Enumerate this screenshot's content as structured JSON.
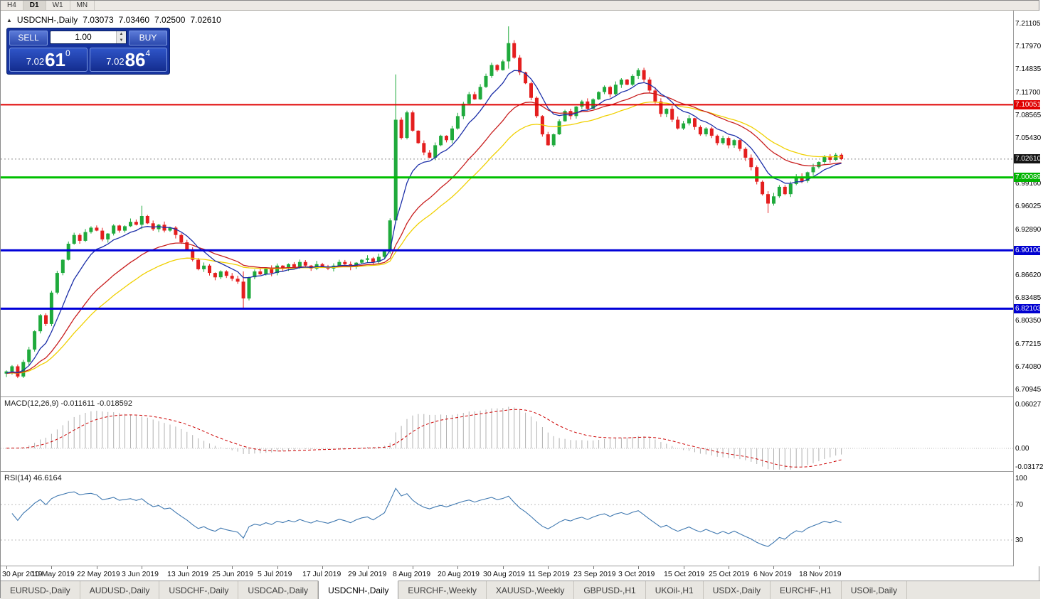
{
  "top_strip": {
    "timeframes": [
      {
        "label": "H4",
        "active": false
      },
      {
        "label": "D1",
        "active": true
      },
      {
        "label": "W1",
        "active": false
      },
      {
        "label": "MN",
        "active": false
      }
    ]
  },
  "chart_header": {
    "collapse_icon": "▲",
    "symbol": "USDCNH-,Daily",
    "open": "7.03073",
    "high": "7.03460",
    "low": "7.02500",
    "close": "7.02610"
  },
  "trade_panel": {
    "sell_label": "SELL",
    "buy_label": "BUY",
    "volume": "1.00",
    "spin_up_icon": "▲",
    "spin_down_icon": "▼",
    "sell_price": {
      "base": "7.02",
      "big": "61",
      "sup": "0"
    },
    "buy_price": {
      "base": "7.02",
      "big": "86",
      "sup": "4"
    }
  },
  "colors": {
    "candle_up": "#1faa3c",
    "candle_down": "#e41e1e",
    "ma_fast": "#1c2fa8",
    "ma_medium": "#c81e1e",
    "ma_slow": "#f0d000",
    "macd_hist": "#b0b0b0",
    "macd_signal": "#cc0000",
    "rsi_line": "#3f78b0",
    "current_price_line": "#8a8a8a"
  },
  "current_price": 7.0261,
  "levels": [
    {
      "price": 7.10051,
      "color": "#e00000",
      "thickness": 2
    },
    {
      "price": 7.00089,
      "color": "#00c000",
      "thickness": 3
    },
    {
      "price": 6.901,
      "color": "#0000d8",
      "thickness": 3
    },
    {
      "price": 6.82103,
      "color": "#0000d8",
      "thickness": 3
    }
  ],
  "price_axis": {
    "labels": [
      "7.21105",
      "7.17970",
      "7.14835",
      "7.11700",
      "7.08565",
      "7.05430",
      "6.99160",
      "6.96025",
      "6.92890",
      "6.86620",
      "6.83485",
      "6.80350",
      "6.77215",
      "6.74080",
      "6.70945"
    ],
    "badges": [
      {
        "text": "7.10051",
        "price": 7.10051,
        "color": "#e00000"
      },
      {
        "text": "7.02610",
        "price": 7.0261,
        "color": "#141414"
      },
      {
        "text": "7.00089",
        "price": 7.00089,
        "color": "#00b400"
      },
      {
        "text": "6.90100",
        "price": 6.901,
        "color": "#0000d0"
      },
      {
        "text": "6.82103",
        "price": 6.82103,
        "color": "#0000d0"
      }
    ]
  },
  "macd_panel": {
    "label": "MACD(12,26,9) -0.011611 -0.018592",
    "axis": [
      {
        "text": "0.06027",
        "value": 0.06027
      },
      {
        "text": "0.00",
        "value": 0
      },
      {
        "text": "-0.03172",
        "value": -0.03172
      }
    ]
  },
  "rsi_panel": {
    "label": "RSI(14) 46.6164",
    "axis": [
      {
        "text": "100",
        "value": 100
      },
      {
        "text": "70",
        "value": 70
      },
      {
        "text": "30",
        "value": 30
      }
    ],
    "level_lines": [
      70,
      30
    ]
  },
  "x_axis": {
    "dates": [
      "30 Apr 2019",
      "10 May 2019",
      "22 May 2019",
      "3 Jun 2019",
      "13 Jun 2019",
      "25 Jun 2019",
      "5 Jul 2019",
      "17 Jul 2019",
      "29 Jul 2019",
      "8 Aug 2019",
      "20 Aug 2019",
      "30 Aug 2019",
      "11 Sep 2019",
      "23 Sep 2019",
      "3 Oct 2019",
      "15 Oct 2019",
      "25 Oct 2019",
      "6 Nov 2019",
      "18 Nov 2019"
    ],
    "candles_per_label": 8
  },
  "tabs": [
    {
      "label": "EURUSD-,Daily",
      "active": false
    },
    {
      "label": "AUDUSD-,Daily",
      "active": false
    },
    {
      "label": "USDCHF-,Daily",
      "active": false
    },
    {
      "label": "USDCAD-,Daily",
      "active": false
    },
    {
      "label": "USDCNH-,Daily",
      "active": true
    },
    {
      "label": "EURCHF-,Weekly",
      "active": false
    },
    {
      "label": "XAUUSD-,Weekly",
      "active": false
    },
    {
      "label": "GBPUSD-,H1",
      "active": false
    },
    {
      "label": "UKOil-,H1",
      "active": false
    },
    {
      "label": "USDX-,Daily",
      "active": false
    },
    {
      "label": "EURCHF-,H1",
      "active": false
    },
    {
      "label": "USOil-,Daily",
      "active": false
    }
  ],
  "chart_data": {
    "type": "candlestick",
    "title": "USDCNH- Daily",
    "ylim": [
      6.70945,
      7.21105
    ],
    "indicators": [
      "MACD(12,26,9)",
      "RSI(14)"
    ],
    "first_open": 6.732,
    "closes": [
      6.735,
      6.742,
      6.728,
      6.748,
      6.765,
      6.79,
      6.812,
      6.8,
      6.843,
      6.87,
      6.888,
      6.91,
      6.922,
      6.914,
      6.926,
      6.932,
      6.928,
      6.916,
      6.924,
      6.935,
      6.928,
      6.934,
      6.94,
      6.936,
      6.948,
      6.938,
      6.93,
      6.936,
      6.928,
      6.932,
      6.922,
      6.912,
      6.902,
      6.888,
      6.875,
      6.88,
      6.87,
      6.864,
      6.872,
      6.866,
      6.862,
      6.858,
      6.835,
      6.864,
      6.872,
      6.868,
      6.876,
      6.87,
      6.88,
      6.876,
      6.882,
      6.878,
      6.885,
      6.88,
      6.876,
      6.882,
      6.879,
      6.876,
      6.88,
      6.885,
      6.882,
      6.878,
      6.884,
      6.888,
      6.89,
      6.885,
      6.892,
      6.9,
      6.942,
      7.08,
      7.055,
      7.09,
      7.065,
      7.048,
      7.035,
      7.028,
      7.045,
      7.058,
      7.052,
      7.068,
      7.085,
      7.102,
      7.115,
      7.108,
      7.125,
      7.14,
      7.155,
      7.148,
      7.16,
      7.185,
      7.165,
      7.145,
      7.13,
      7.11,
      7.085,
      7.06,
      7.045,
      7.06,
      7.078,
      7.092,
      7.085,
      7.098,
      7.105,
      7.095,
      7.108,
      7.118,
      7.125,
      7.115,
      7.128,
      7.135,
      7.128,
      7.14,
      7.148,
      7.135,
      7.12,
      7.105,
      7.088,
      7.095,
      7.08,
      7.068,
      7.075,
      7.082,
      7.07,
      7.06,
      7.068,
      7.058,
      7.048,
      7.055,
      7.045,
      7.052,
      7.04,
      7.028,
      7.015,
      6.995,
      6.978,
      6.965,
      6.975,
      6.988,
      6.978,
      6.992,
      7.002,
      6.996,
      7.008,
      7.015,
      7.022,
      7.03,
      7.025,
      7.032,
      7.0261
    ],
    "wick_overrides": {
      "24": [
        6.962,
        6.93
      ],
      "42": [
        6.872,
        6.8205
      ],
      "69": [
        7.142,
        6.938
      ],
      "89": [
        7.208,
        7.15
      ],
      "135": [
        6.982,
        6.952
      ]
    },
    "ma": {
      "fast_period": 8,
      "medium_period": 20,
      "slow_period": 30
    }
  }
}
